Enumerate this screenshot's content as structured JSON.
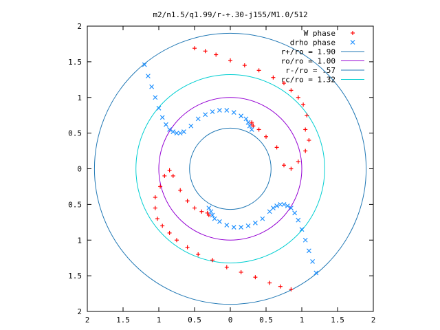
{
  "chart_data": {
    "type": "scatter",
    "title": "m2/n1.5/q1.99/r-+.30-j155/M1.0/512",
    "xlim": [
      -2,
      2
    ],
    "ylim": [
      -2,
      2
    ],
    "x_tick_values": [
      -2,
      -1.5,
      -1,
      -0.5,
      0,
      0.5,
      1,
      1.5,
      2
    ],
    "y_tick_values": [
      -2,
      -1.5,
      -1,
      -0.5,
      0,
      0.5,
      1,
      1.5,
      2
    ],
    "x_tick_labels": [
      "2",
      "1.5",
      "1",
      "0.5",
      "0",
      "0.5",
      "1",
      "1.5",
      "2"
    ],
    "y_tick_labels": [
      "2",
      "1.5",
      "1",
      "0.5",
      "0",
      "0.5",
      "1",
      "1.5",
      "2"
    ],
    "grid": false,
    "legend_position": "top-right",
    "series": [
      {
        "name": "W phase",
        "marker": "plus",
        "color": "#ff0000",
        "x": [
          0.85,
          0.7,
          0.55,
          0.35,
          0.15,
          -0.05,
          -0.25,
          -0.45,
          -0.6,
          -0.75,
          -0.85,
          -0.95,
          -1.02,
          -1.05,
          -1.05,
          -0.98,
          -0.92,
          -0.85,
          -0.8,
          -0.7,
          -0.6,
          -0.5,
          -0.4,
          -0.32,
          -0.3,
          -0.5,
          -0.35,
          -0.2,
          0.0,
          0.2,
          0.4,
          0.6,
          0.75,
          0.85,
          0.95,
          1.02,
          1.07,
          1.05,
          1.1,
          1.05,
          0.95,
          0.85,
          0.75,
          0.65,
          0.5,
          0.4,
          0.32,
          0.3,
          0.3
        ],
        "y": [
          -1.69,
          -1.65,
          -1.6,
          -1.52,
          -1.45,
          -1.38,
          -1.28,
          -1.2,
          -1.1,
          -1.0,
          -0.9,
          -0.8,
          -0.7,
          -0.55,
          -0.4,
          -0.25,
          -0.1,
          -0.02,
          -0.1,
          -0.3,
          -0.45,
          -0.55,
          -0.6,
          -0.62,
          -0.65,
          1.69,
          1.65,
          1.6,
          1.52,
          1.45,
          1.38,
          1.28,
          1.2,
          1.1,
          1.0,
          0.9,
          0.75,
          0.55,
          0.4,
          0.25,
          0.1,
          0.0,
          0.05,
          0.3,
          0.45,
          0.55,
          0.6,
          0.63,
          0.65
        ]
      },
      {
        "name": "drho phase",
        "marker": "cross",
        "color": "#1e90ff",
        "x": [
          1.2,
          1.15,
          1.1,
          1.05,
          1.0,
          0.95,
          0.9,
          0.85,
          0.8,
          0.75,
          0.7,
          0.65,
          0.6,
          0.55,
          0.45,
          0.35,
          0.25,
          0.15,
          0.05,
          -0.05,
          -0.15,
          -0.22,
          -0.25,
          -0.27,
          -0.3,
          -1.2,
          -1.15,
          -1.1,
          -1.05,
          -1.0,
          -0.95,
          -0.9,
          -0.85,
          -0.8,
          -0.75,
          -0.7,
          -0.65,
          -0.55,
          -0.45,
          -0.35,
          -0.25,
          -0.15,
          -0.05,
          0.05,
          0.15,
          0.22,
          0.25,
          0.27,
          0.3
        ],
        "y": [
          -1.46,
          -1.3,
          -1.15,
          -1.0,
          -0.85,
          -0.72,
          -0.62,
          -0.55,
          -0.52,
          -0.5,
          -0.5,
          -0.52,
          -0.55,
          -0.6,
          -0.7,
          -0.76,
          -0.8,
          -0.82,
          -0.82,
          -0.79,
          -0.74,
          -0.7,
          -0.65,
          -0.6,
          -0.55,
          1.46,
          1.3,
          1.15,
          1.0,
          0.85,
          0.72,
          0.62,
          0.55,
          0.52,
          0.5,
          0.5,
          0.52,
          0.6,
          0.7,
          0.76,
          0.8,
          0.82,
          0.82,
          0.79,
          0.74,
          0.7,
          0.65,
          0.6,
          0.55
        ]
      },
      {
        "name": "r+/ro = 1.90",
        "kind": "circle",
        "radius": 1.9,
        "color": "#1f77b4"
      },
      {
        "name": "ro/ro = 1.00",
        "kind": "circle",
        "radius": 1.0,
        "color": "#9400d3"
      },
      {
        "name": "r-/ro = .57",
        "kind": "circle",
        "radius": 0.57,
        "color": "#1f77b4"
      },
      {
        "name": "rc/ro = 1.32",
        "kind": "circle",
        "radius": 1.32,
        "color": "#00ced1"
      }
    ]
  }
}
